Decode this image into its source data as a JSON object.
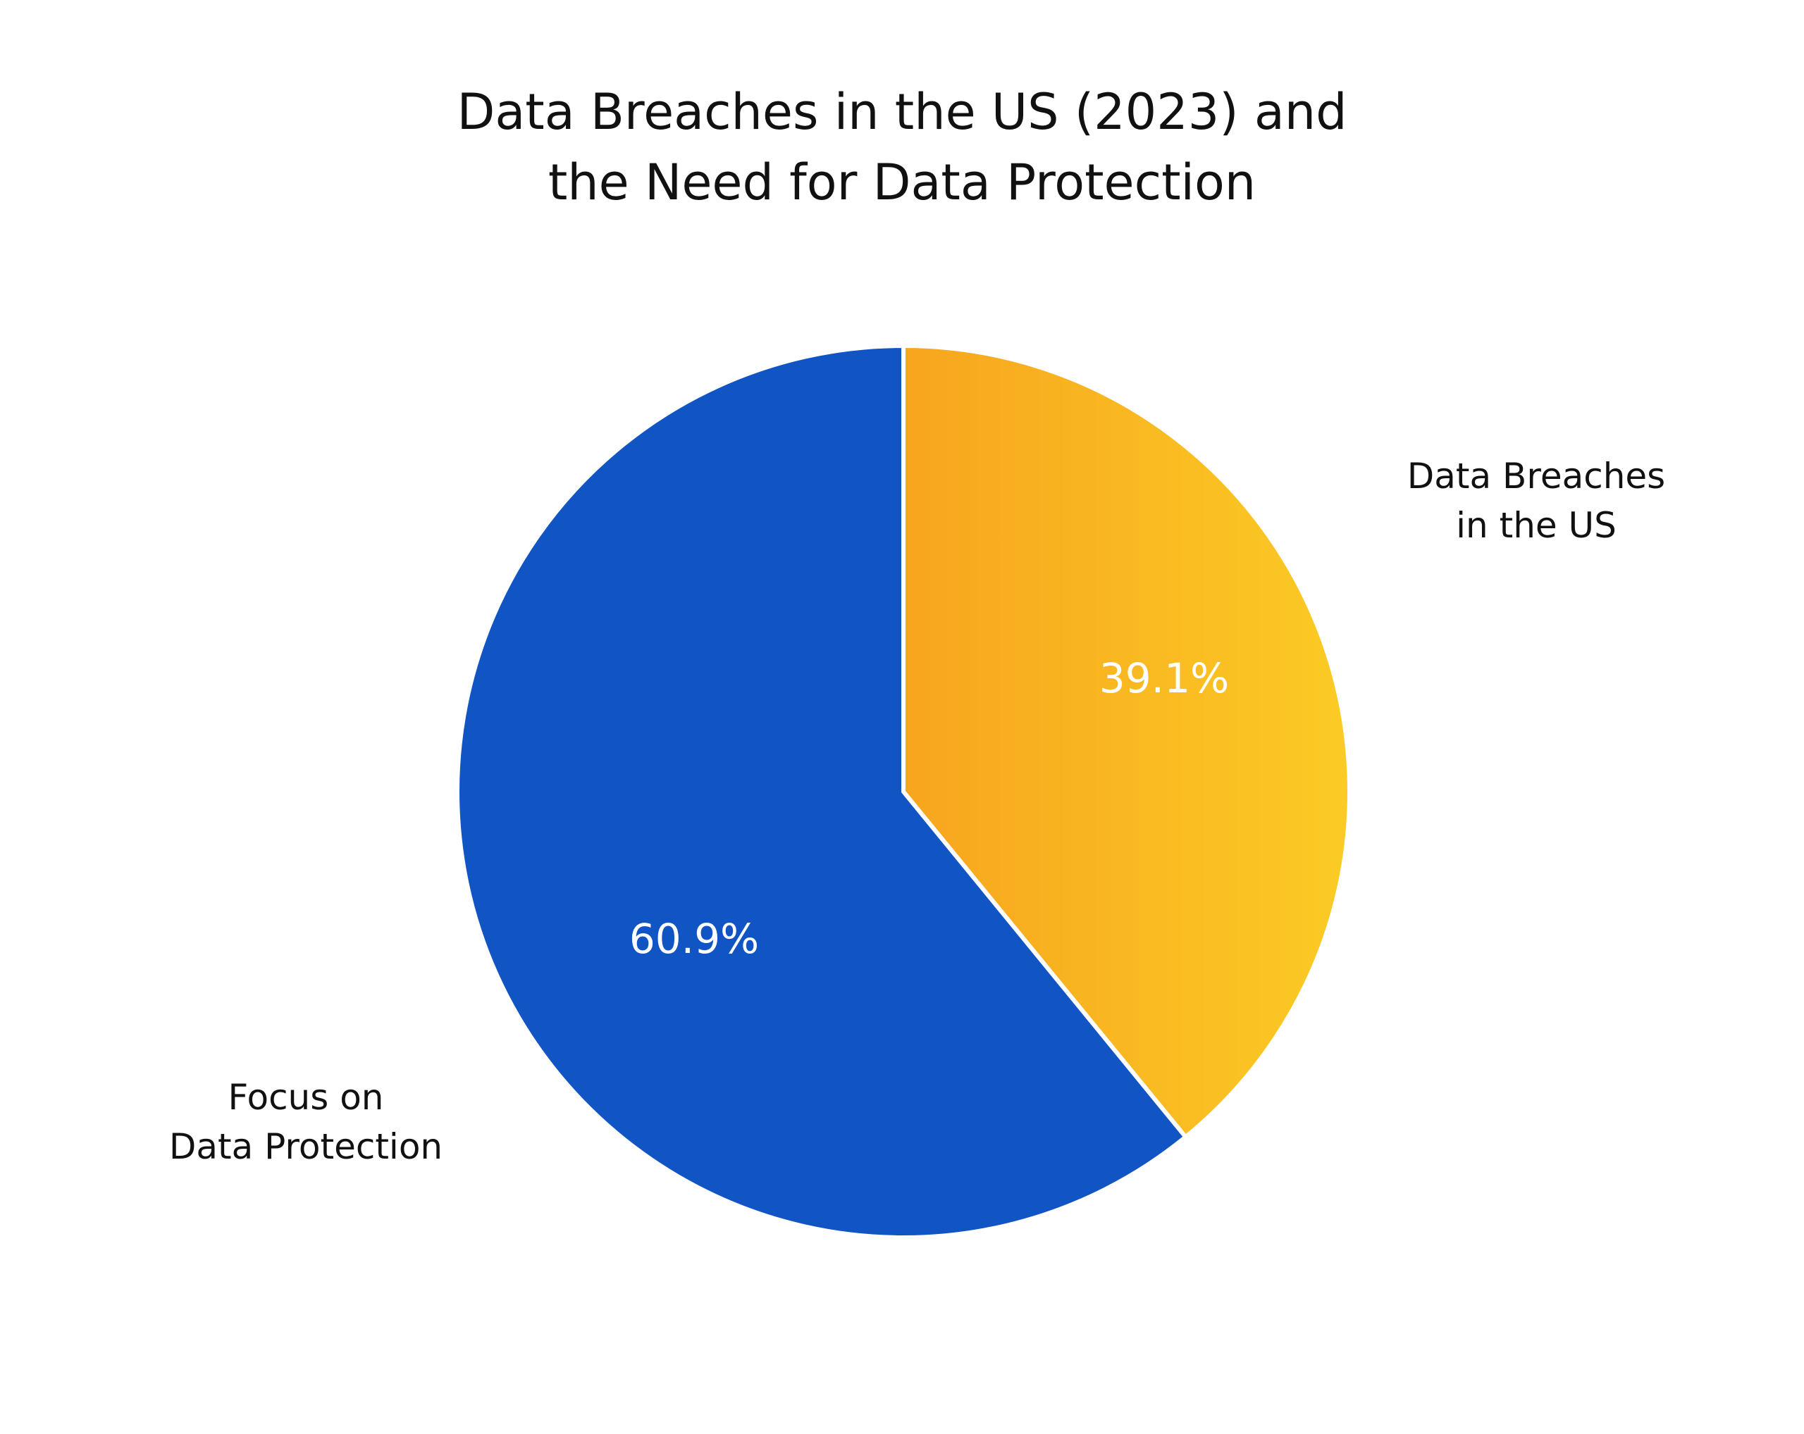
{
  "chart_data": {
    "type": "pie",
    "title_lines": [
      "Data Breaches in the US (2023) and",
      "the Need for Data Protection"
    ],
    "slices": [
      {
        "name_lines": [
          "Data Breaches",
          "in the US"
        ],
        "value": 39.1,
        "label": "39.1%",
        "color_start": "#F7A51E",
        "color_end": "#FBCB25"
      },
      {
        "name_lines": [
          "Focus on",
          "Data Protection"
        ],
        "value": 60.9,
        "label": "60.9%",
        "color": "#1155C4"
      }
    ],
    "start": "top",
    "direction": "clockwise",
    "separator_color": "#ffffff"
  }
}
